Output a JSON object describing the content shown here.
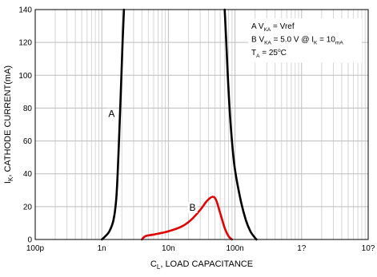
{
  "chart_data": {
    "type": "line",
    "x_scale": "log",
    "ylim": [
      0,
      140
    ],
    "x_ticks": [
      {
        "value": 1e-10,
        "label": "100p"
      },
      {
        "value": 1e-09,
        "label": "1n"
      },
      {
        "value": 1e-08,
        "label": "10n"
      },
      {
        "value": 1e-07,
        "label": "100n"
      },
      {
        "value": 1e-06,
        "label": "1?"
      },
      {
        "value": 1e-05,
        "label": "10?"
      }
    ],
    "y_ticks": [
      0,
      20,
      40,
      60,
      80,
      100,
      120,
      140
    ],
    "xlabel": {
      "pre": "C",
      "sub": "L",
      "post": ", LOAD CAPACITANCE"
    },
    "ylabel": {
      "pre": "I",
      "sub": "K",
      "post": ", CATHODE CURRENT(mA)"
    },
    "grid": true,
    "legend": [
      {
        "parts": [
          [
            "A V",
            ""
          ],
          [
            "KA",
            "sub"
          ],
          [
            " = Vref",
            ""
          ]
        ]
      },
      {
        "parts": [
          [
            "B V",
            ""
          ],
          [
            "KA",
            "sub"
          ],
          [
            " = 5.0 V @ I",
            ""
          ],
          [
            "K",
            "sub"
          ],
          [
            " = 10",
            ""
          ],
          [
            "mA",
            "sub"
          ]
        ]
      },
      {
        "parts": [
          [
            "T",
            ""
          ],
          [
            "A",
            "sub"
          ],
          [
            " = 25",
            ""
          ],
          [
            "o",
            "sup"
          ],
          [
            "C",
            ""
          ]
        ]
      }
    ],
    "series": [
      {
        "name": "A",
        "color": "#000000",
        "label_at": [
          1.4e-09,
          75
        ],
        "segments": [
          [
            [
              1e-09,
              0
            ],
            [
              1.1e-09,
              1.5
            ],
            [
              1.3e-09,
              5
            ],
            [
              1.5e-09,
              12
            ],
            [
              1.65e-09,
              25
            ],
            [
              1.75e-09,
              45
            ],
            [
              1.85e-09,
              70
            ],
            [
              1.95e-09,
              95
            ],
            [
              2.05e-09,
              120
            ],
            [
              2.15e-09,
              140
            ]
          ],
          [
            [
              7e-08,
              140
            ],
            [
              7.4e-08,
              120
            ],
            [
              7.9e-08,
              95
            ],
            [
              8.6e-08,
              70
            ],
            [
              9.8e-08,
              45
            ],
            [
              1.2e-07,
              25
            ],
            [
              1.45e-07,
              12
            ],
            [
              1.7e-07,
              5
            ],
            [
              1.95e-07,
              1.5
            ],
            [
              2.1e-07,
              0
            ]
          ]
        ]
      },
      {
        "name": "B",
        "color": "#e00000",
        "label_at": [
          2.3e-08,
          18
        ],
        "segments": [
          [
            [
              4e-09,
              0
            ],
            [
              4.5e-09,
              2
            ],
            [
              6e-09,
              3
            ],
            [
              1e-08,
              5
            ],
            [
              1.6e-08,
              8
            ],
            [
              2.2e-08,
              12
            ],
            [
              3e-08,
              18
            ],
            [
              3.8e-08,
              23.5
            ],
            [
              4.6e-08,
              26
            ],
            [
              5.2e-08,
              24
            ],
            [
              6e-08,
              16
            ],
            [
              7e-08,
              7
            ],
            [
              8e-08,
              2
            ],
            [
              9e-08,
              0
            ]
          ]
        ]
      }
    ]
  }
}
